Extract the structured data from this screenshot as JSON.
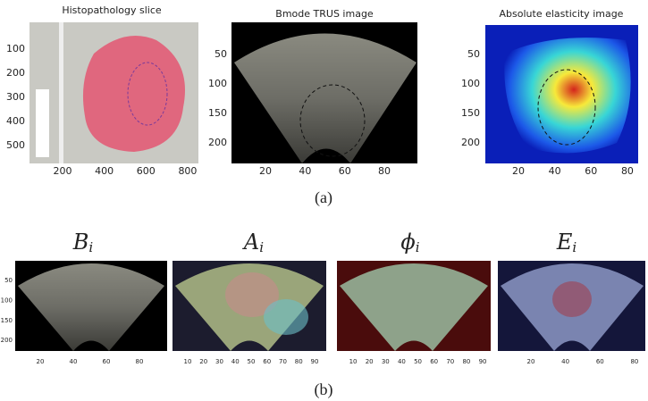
{
  "figure": {
    "top": {
      "panels": [
        {
          "title": "Histopathology slice",
          "xticks": [
            200,
            400,
            600,
            800
          ],
          "yticks": [
            100,
            200,
            300,
            400,
            500
          ]
        },
        {
          "title": "Bmode TRUS image",
          "xticks": [
            20,
            40,
            60,
            80
          ],
          "yticks": [
            50,
            100,
            150,
            200
          ]
        },
        {
          "title": "Absolute elasticity image",
          "xticks": [
            20,
            40,
            60,
            80
          ],
          "yticks": [
            50,
            100,
            150,
            200
          ]
        }
      ],
      "caption": "(a)"
    },
    "bottom": {
      "panels": [
        {
          "symbol": "B",
          "subscript": "i",
          "xticks": [
            20,
            40,
            60,
            80
          ],
          "yticks": [
            50,
            100,
            150,
            200
          ]
        },
        {
          "symbol": "A",
          "subscript": "i",
          "xticks": [
            10,
            20,
            30,
            40,
            50,
            60,
            70,
            80,
            90
          ]
        },
        {
          "symbol": "ϕ",
          "subscript": "i",
          "xticks": [
            10,
            20,
            30,
            40,
            50,
            60,
            70,
            80,
            90
          ]
        },
        {
          "symbol": "E",
          "subscript": "i",
          "xticks": [
            20,
            40,
            60,
            80
          ]
        }
      ],
      "caption": "(b)"
    }
  }
}
